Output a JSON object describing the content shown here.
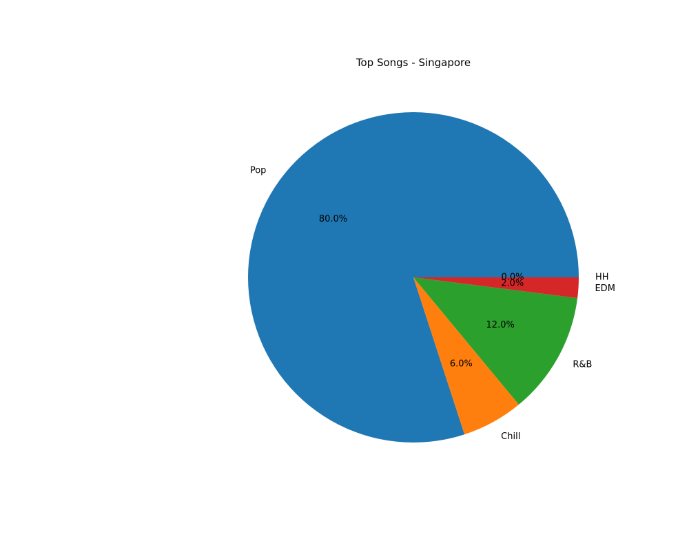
{
  "chart_data": {
    "type": "pie",
    "title": "Top Songs - Singapore",
    "categories": [
      "Pop",
      "Chill",
      "R&B",
      "EDM",
      "HH"
    ],
    "values": [
      80.0,
      6.0,
      12.0,
      2.0,
      0.0
    ],
    "pct_labels": [
      "80.0%",
      "6.0%",
      "12.0%",
      "2.0%",
      "0.0%"
    ],
    "colors": [
      "#1f77b4",
      "#ff7f0e",
      "#2ca02c",
      "#d62728",
      "#9467bd"
    ]
  }
}
